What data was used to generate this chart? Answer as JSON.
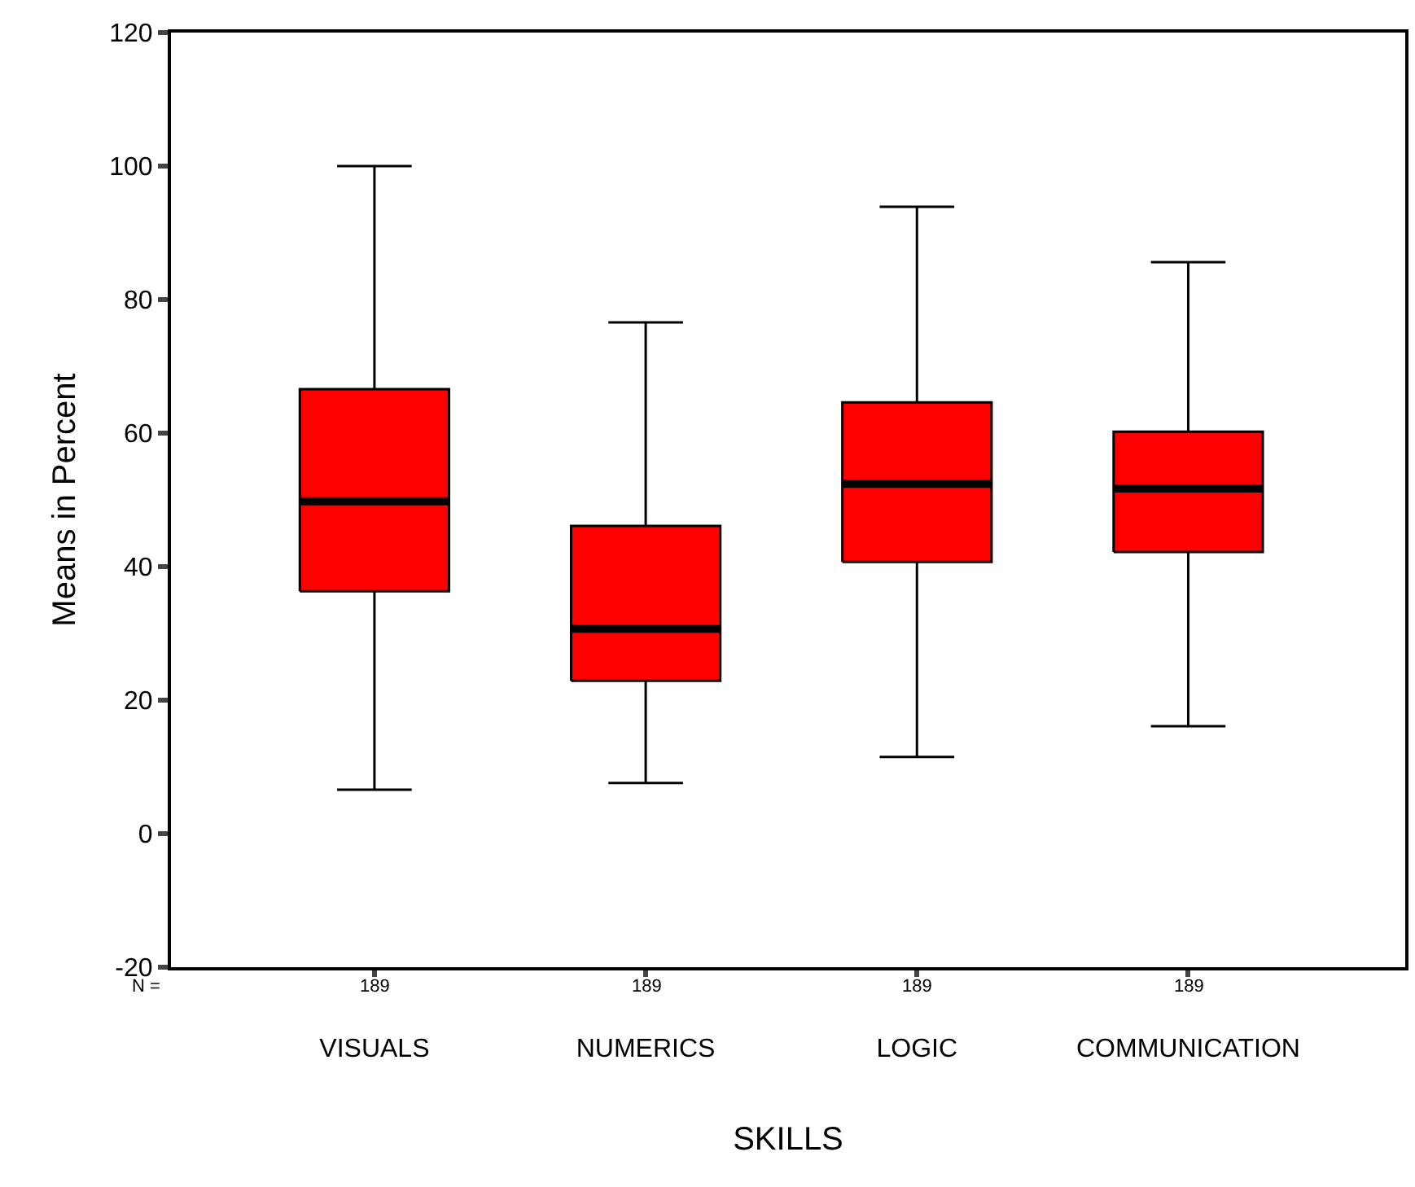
{
  "chart_data": {
    "type": "box",
    "xlabel": "SKILLS",
    "ylabel": "Means in Percent",
    "categories": [
      "VISUALS",
      "NUMERICS",
      "LOGIC",
      "COMMUNICATION"
    ],
    "color": "#ff0000",
    "boxes": [
      {
        "low": 6.6,
        "q1": 36.3,
        "median": 49.8,
        "q3": 66.6,
        "high": 100
      },
      {
        "low": 7.6,
        "q1": 22.9,
        "median": 30.7,
        "q3": 46.1,
        "high": 76.6
      },
      {
        "low": 11.5,
        "q1": 40.7,
        "median": 52.4,
        "q3": 64.6,
        "high": 93.9
      },
      {
        "low": 16.1,
        "q1": 42.2,
        "median": 51.7,
        "q3": 60.2,
        "high": 85.6
      }
    ],
    "annotations": [
      "N =",
      "189",
      "189",
      "189",
      "189"
    ],
    "ylim": [
      -20,
      120
    ],
    "yticks": [
      -20,
      0,
      20,
      40,
      60,
      80,
      100,
      120
    ]
  }
}
